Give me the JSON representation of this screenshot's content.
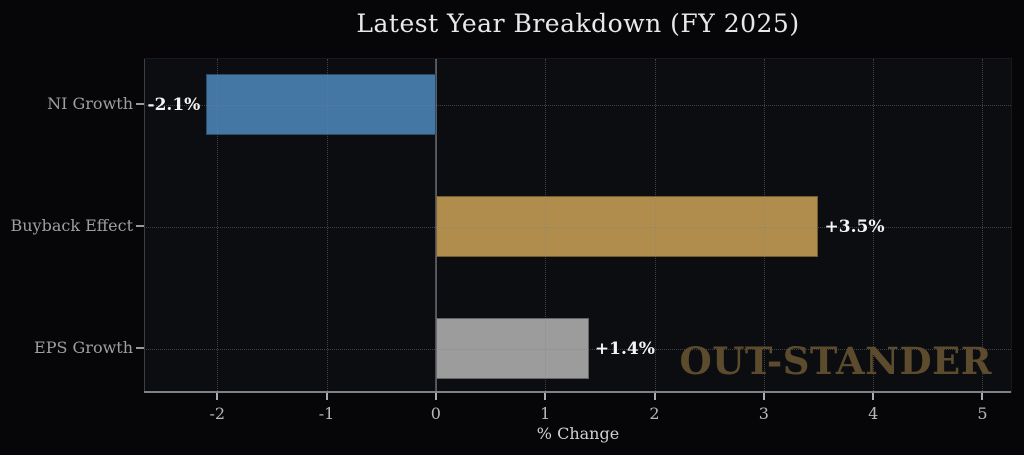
{
  "watermark": "OUT-STANDER",
  "colors": {
    "background": "#060608",
    "plot_background": "#0c0d11",
    "blue_bar": "#4477a4",
    "gold_bar": "#b18d4d",
    "gray_bar": "#9c9c9c",
    "watermark_gold": "#5c4b2d",
    "value_label_text": "#f4f4f4",
    "axis_text": "#b6b7ba"
  },
  "chart_data": {
    "type": "bar",
    "orientation": "horizontal",
    "title": "Latest Year Breakdown (FY 2025)",
    "xlabel": "% Change",
    "ylabel": "",
    "categories": [
      "NI Growth",
      "Buyback Effect",
      "EPS Growth"
    ],
    "values": [
      -2.1,
      3.5,
      1.4
    ],
    "value_labels": [
      "-2.1%",
      "+3.5%",
      "+1.4%"
    ],
    "bar_colors": [
      "#4477a4",
      "#b18d4d",
      "#9c9c9c"
    ],
    "xticks": [
      -2,
      -1,
      0,
      1,
      2,
      3,
      4,
      5
    ],
    "xlim": [
      -2.67,
      5.27
    ],
    "grid": true,
    "grid_style": "dotted",
    "zero_line": true,
    "legend": "none"
  }
}
